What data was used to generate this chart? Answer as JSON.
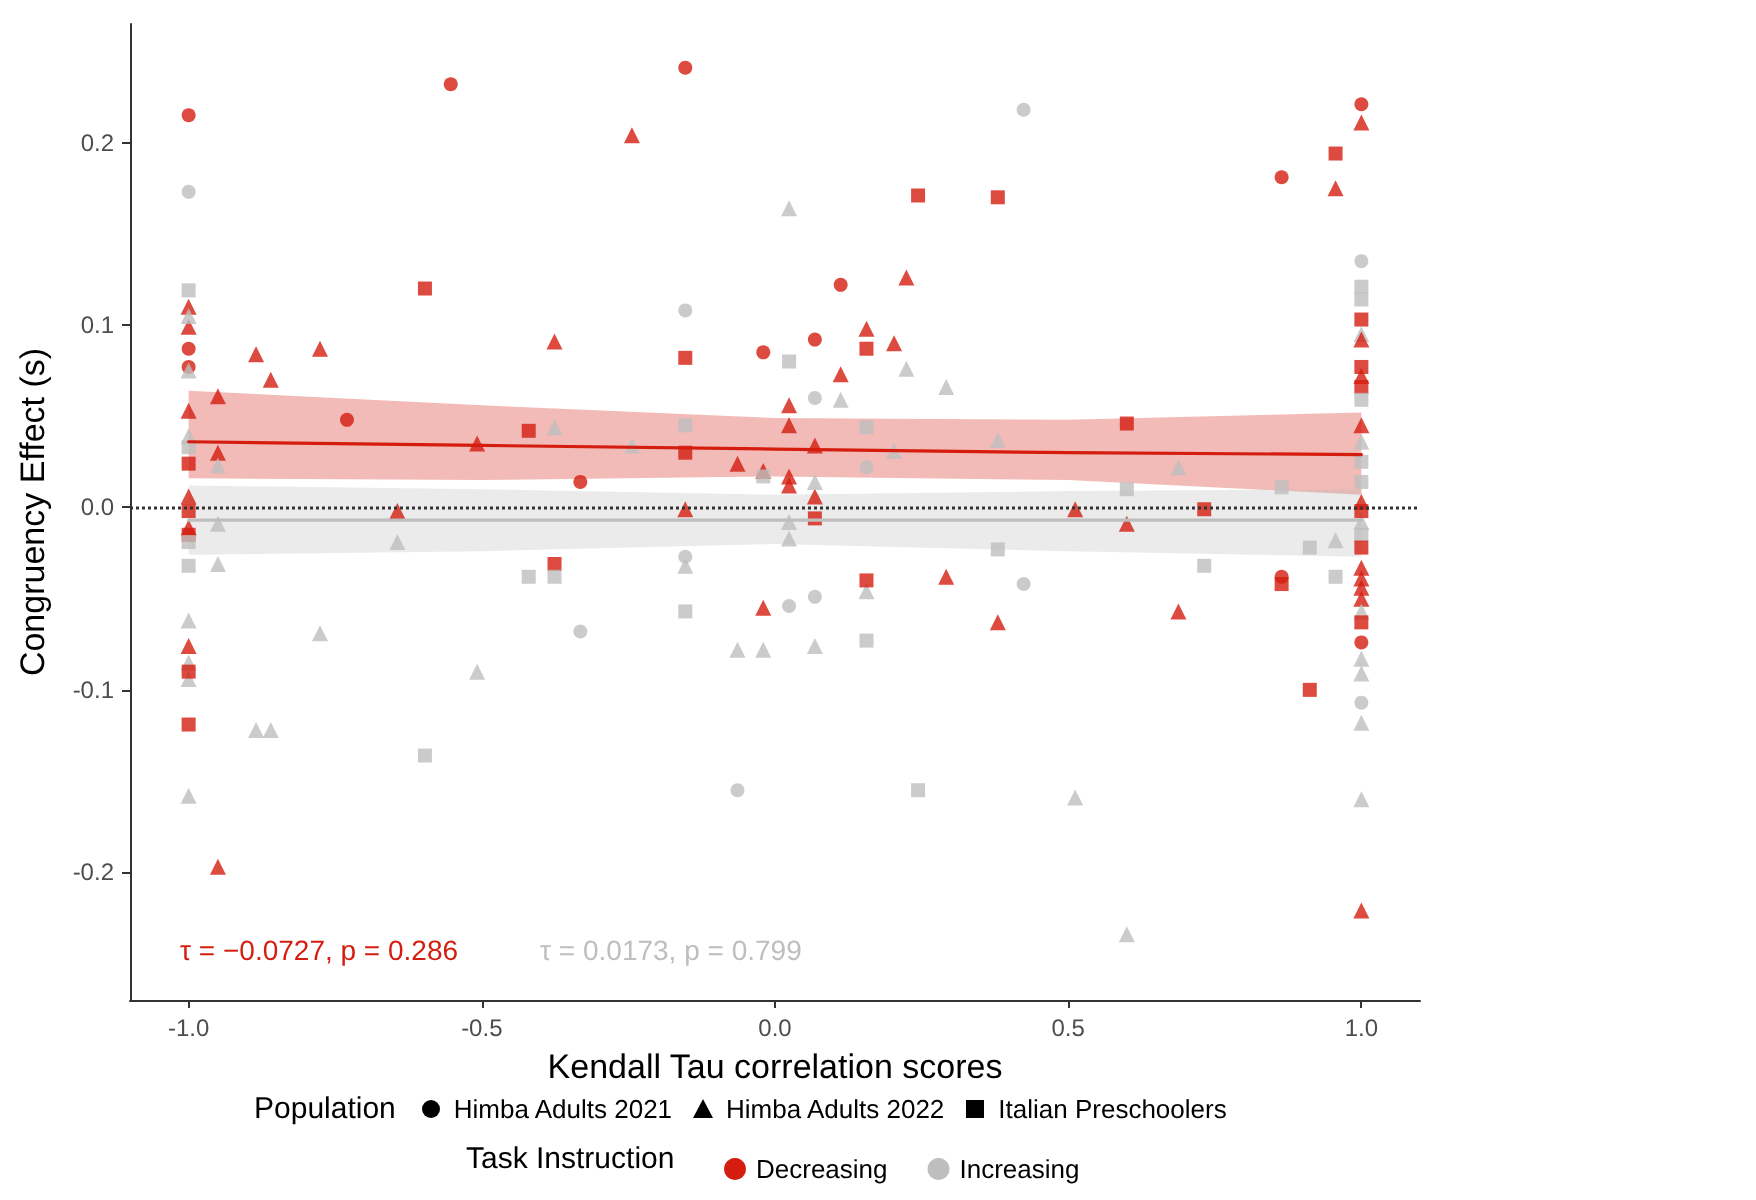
{
  "chart_data": {
    "type": "scatter",
    "xlabel": "Kendall Tau correlation scores",
    "ylabel": "Congruency Effect (s)",
    "legend_title": "Population",
    "xlim": [
      -1.1,
      1.1
    ],
    "ylim": [
      -0.27,
      0.265
    ],
    "xticks": [
      {
        "value": -1,
        "label": "-1.0"
      },
      {
        "value": -0.5,
        "label": "-0.5"
      },
      {
        "value": 0,
        "label": "0.0"
      },
      {
        "value": 0.5,
        "label": "0.5"
      },
      {
        "value": 1,
        "label": "1.0"
      }
    ],
    "yticks": [
      {
        "value": -0.2,
        "label": "-0.2"
      },
      {
        "value": -0.1,
        "label": "-0.1"
      },
      {
        "value": 0,
        "label": "0.0"
      },
      {
        "value": 0.1,
        "label": "0.1"
      },
      {
        "value": 0.2,
        "label": "0.2"
      }
    ],
    "grid": false,
    "legend": "bottom",
    "ref_lines": [
      {
        "axis": "y",
        "value": 0,
        "line_style": "dotted",
        "color": "#333333"
      }
    ],
    "annotations": [
      "τ = −0.0727, p = 0.286",
      "τ = 0.0173, p = 0.799",
      "Task Instruction",
      "Himba Adults 2021",
      "Himba Adults 2022",
      "Italian Preschoolers"
    ],
    "series": [
      {
        "marker": "circle",
        "x": [
          -1,
          -1,
          -1,
          -1,
          -0.73,
          -0.553,
          -0.153,
          -0.153,
          -0.02,
          -0.332,
          -0.153,
          -0.332,
          0.024,
          -0.064,
          0.424,
          0.112,
          0.068,
          0.068,
          0.156,
          0.424,
          0.068,
          1,
          0.864,
          1,
          1,
          1,
          0.864
        ],
        "values": [
          0.215,
          0.173,
          0.087,
          0.077,
          0.048,
          0.232,
          0.241,
          0.108,
          0.085,
          0.014,
          -0.027,
          -0.068,
          -0.054,
          -0.155,
          0.218,
          0.122,
          0.092,
          0.06,
          0.022,
          -0.042,
          -0.049,
          0.221,
          0.181,
          0.135,
          -0.074,
          -0.107,
          -0.038
        ],
        "colors": [
          "#d51d0f",
          "#bebebe",
          "#d51d0f",
          "#d51d0f",
          "#d51d0f",
          "#d51d0f",
          "#d51d0f",
          "#bebebe",
          "#d51d0f",
          "#d51d0f",
          "#bebebe",
          "#bebebe",
          "#bebebe",
          "#bebebe",
          "#bebebe",
          "#d51d0f",
          "#d51d0f",
          "#bebebe",
          "#bebebe",
          "#bebebe",
          "#bebebe",
          "#d51d0f",
          "#d51d0f",
          "#bebebe",
          "#d51d0f",
          "#bebebe",
          "#d51d0f"
        ]
      },
      {
        "marker": "triangle",
        "x": [
          -1,
          -1,
          -1,
          -1,
          -1,
          -1,
          -1,
          -1,
          -1,
          -1,
          -1,
          -1,
          -1,
          -0.95,
          -0.95,
          -0.95,
          -0.95,
          -0.95,
          -0.95,
          -0.885,
          -0.86,
          -0.776,
          -0.776,
          -0.885,
          -0.86,
          -0.244,
          0.024,
          -0.376,
          0.024,
          0.024,
          -0.376,
          -0.508,
          -0.244,
          -0.064,
          -0.02,
          0.024,
          0.024,
          -0.644,
          -0.644,
          -0.153,
          0.024,
          0.024,
          -0.153,
          -0.02,
          -0.064,
          -0.02,
          -0.508,
          0.224,
          0.156,
          0.203,
          0.224,
          0.292,
          0.112,
          0.112,
          0.203,
          0.38,
          0.068,
          0.688,
          0.068,
          0.068,
          0.512,
          0.6,
          0.292,
          0.156,
          0.38,
          0.688,
          0.068,
          0.512,
          0.6,
          1,
          0.956,
          1,
          1,
          1,
          1,
          1,
          1,
          1,
          1,
          1,
          1,
          1,
          1,
          1,
          1,
          1,
          1,
          1,
          0.956
        ],
        "values": [
          0.11,
          0.099,
          0.105,
          0.075,
          0.053,
          0.039,
          0.006,
          -0.011,
          -0.062,
          -0.076,
          -0.085,
          -0.094,
          -0.158,
          0.061,
          0.03,
          0.023,
          -0.009,
          -0.031,
          -0.197,
          0.084,
          0.07,
          0.087,
          -0.069,
          -0.122,
          -0.122,
          0.204,
          0.164,
          0.091,
          0.056,
          0.045,
          0.044,
          0.035,
          0.034,
          0.024,
          0.02,
          0.017,
          0.012,
          -0.002,
          -0.019,
          -0.001,
          -0.008,
          -0.017,
          -0.032,
          -0.055,
          -0.078,
          -0.078,
          -0.09,
          0.126,
          0.098,
          0.09,
          0.076,
          0.066,
          0.073,
          0.059,
          0.031,
          0.037,
          0.034,
          0.022,
          0.006,
          0.014,
          -0.001,
          -0.009,
          -0.038,
          -0.046,
          -0.063,
          -0.057,
          -0.076,
          -0.159,
          -0.234,
          0.211,
          0.175,
          0.095,
          0.092,
          0.072,
          0.045,
          0.036,
          0.003,
          -0.008,
          -0.033,
          -0.039,
          -0.044,
          -0.05,
          -0.057,
          -0.083,
          -0.091,
          -0.118,
          -0.16,
          -0.221,
          -0.018
        ],
        "colors": [
          "#d51d0f",
          "#d51d0f",
          "#bebebe",
          "#bebebe",
          "#d51d0f",
          "#bebebe",
          "#d51d0f",
          "#d51d0f",
          "#bebebe",
          "#d51d0f",
          "#bebebe",
          "#bebebe",
          "#bebebe",
          "#d51d0f",
          "#d51d0f",
          "#bebebe",
          "#bebebe",
          "#bebebe",
          "#d51d0f",
          "#d51d0f",
          "#d51d0f",
          "#d51d0f",
          "#bebebe",
          "#bebebe",
          "#bebebe",
          "#d51d0f",
          "#bebebe",
          "#d51d0f",
          "#d51d0f",
          "#d51d0f",
          "#bebebe",
          "#d51d0f",
          "#bebebe",
          "#d51d0f",
          "#d51d0f",
          "#d51d0f",
          "#d51d0f",
          "#d51d0f",
          "#bebebe",
          "#d51d0f",
          "#bebebe",
          "#bebebe",
          "#bebebe",
          "#d51d0f",
          "#bebebe",
          "#bebebe",
          "#bebebe",
          "#d51d0f",
          "#d51d0f",
          "#d51d0f",
          "#bebebe",
          "#bebebe",
          "#d51d0f",
          "#bebebe",
          "#bebebe",
          "#bebebe",
          "#d51d0f",
          "#bebebe",
          "#d51d0f",
          "#bebebe",
          "#d51d0f",
          "#d51d0f",
          "#d51d0f",
          "#bebebe",
          "#d51d0f",
          "#d51d0f",
          "#bebebe",
          "#bebebe",
          "#bebebe",
          "#d51d0f",
          "#d51d0f",
          "#bebebe",
          "#d51d0f",
          "#d51d0f",
          "#d51d0f",
          "#bebebe",
          "#d51d0f",
          "#bebebe",
          "#d51d0f",
          "#d51d0f",
          "#d51d0f",
          "#d51d0f",
          "#bebebe",
          "#bebebe",
          "#bebebe",
          "#bebebe",
          "#bebebe",
          "#d51d0f",
          "#bebebe"
        ]
      },
      {
        "marker": "square",
        "x": [
          -1,
          -1,
          -1,
          -1,
          -1,
          -1,
          -1,
          -1,
          -1,
          -0.597,
          -0.153,
          0.024,
          -0.42,
          -0.153,
          -0.153,
          -0.02,
          -0.376,
          -0.42,
          -0.376,
          -0.153,
          -0.597,
          0.244,
          0.38,
          0.156,
          0.156,
          0.6,
          0.6,
          0.068,
          0.732,
          0.38,
          0.732,
          0.156,
          0.156,
          0.244,
          0.956,
          1,
          1,
          1,
          1,
          1,
          1,
          1,
          1,
          1,
          1,
          1,
          1,
          0.864,
          0.864,
          0.912,
          0.956,
          0.912
        ],
        "values": [
          0.119,
          0.033,
          0.024,
          -0.002,
          -0.015,
          -0.019,
          -0.032,
          -0.09,
          -0.119,
          0.12,
          0.082,
          0.08,
          0.042,
          0.045,
          0.03,
          0.017,
          -0.031,
          -0.038,
          -0.038,
          -0.057,
          -0.136,
          0.171,
          0.17,
          0.087,
          0.044,
          0.046,
          0.01,
          -0.006,
          -0.001,
          -0.023,
          -0.032,
          -0.04,
          -0.073,
          -0.155,
          0.194,
          0.121,
          0.114,
          0.103,
          0.077,
          0.066,
          0.059,
          0.025,
          0.014,
          -0.002,
          -0.015,
          -0.022,
          -0.063,
          -0.042,
          0.011,
          -0.022,
          -0.038,
          -0.1
        ],
        "colors": [
          "#bebebe",
          "#bebebe",
          "#d51d0f",
          "#d51d0f",
          "#d51d0f",
          "#bebebe",
          "#bebebe",
          "#d51d0f",
          "#d51d0f",
          "#d51d0f",
          "#d51d0f",
          "#bebebe",
          "#d51d0f",
          "#bebebe",
          "#d51d0f",
          "#bebebe",
          "#d51d0f",
          "#bebebe",
          "#bebebe",
          "#bebebe",
          "#bebebe",
          "#d51d0f",
          "#d51d0f",
          "#d51d0f",
          "#bebebe",
          "#d51d0f",
          "#bebebe",
          "#d51d0f",
          "#d51d0f",
          "#bebebe",
          "#bebebe",
          "#d51d0f",
          "#bebebe",
          "#bebebe",
          "#d51d0f",
          "#bebebe",
          "#bebebe",
          "#d51d0f",
          "#d51d0f",
          "#d51d0f",
          "#bebebe",
          "#bebebe",
          "#bebebe",
          "#d51d0f",
          "#bebebe",
          "#d51d0f",
          "#d51d0f",
          "#d51d0f",
          "#bebebe",
          "#bebebe",
          "#bebebe",
          "#d51d0f"
        ]
      },
      {
        "name": "Decreasing",
        "type": "line",
        "color": "#d51d0f",
        "marker": "none",
        "x": [
          -1,
          -0.5,
          0,
          0.5,
          1
        ],
        "values": [
          0.036,
          0.034,
          0.032,
          0.03,
          0.029
        ],
        "lower": [
          0.016,
          0.015,
          0.017,
          0.015,
          0.007
        ],
        "upper": [
          0.064,
          0.056,
          0.049,
          0.048,
          0.052
        ]
      },
      {
        "name": "Increasing",
        "type": "line",
        "color": "#bebebe",
        "marker": "none",
        "x": [
          -1,
          -0.5,
          0,
          0.5,
          1
        ],
        "values": [
          -0.007,
          -0.007,
          -0.007,
          -0.007,
          -0.007
        ],
        "lower": [
          -0.026,
          -0.024,
          -0.02,
          -0.024,
          -0.027
        ],
        "upper": [
          0.012,
          0.01,
          0.007,
          0.009,
          0.01
        ]
      }
    ]
  }
}
